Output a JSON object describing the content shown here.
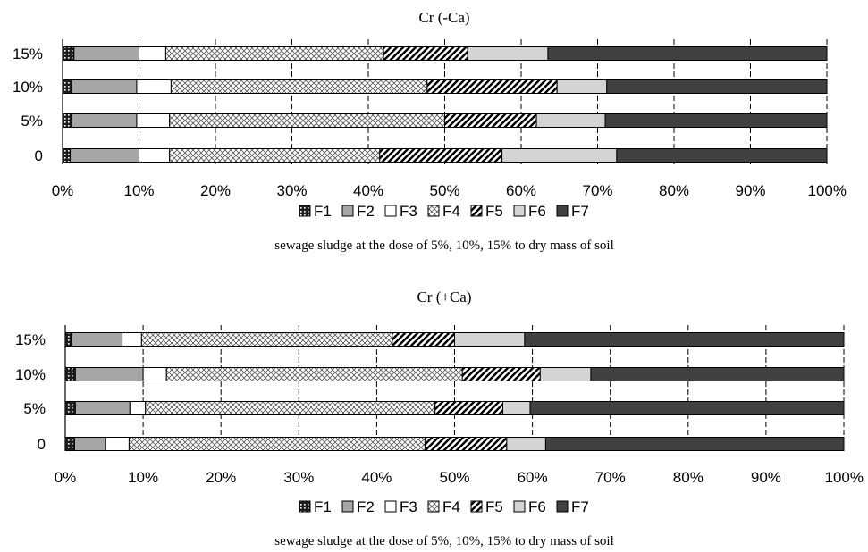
{
  "chart_data": [
    {
      "type": "bar",
      "orientation": "horizontal",
      "stacked": true,
      "title": "Cr (-Ca)",
      "caption": "sewage sludge at the dose of 5%, 10%, 15% to dry mass of soil",
      "categories": [
        "15%",
        "10%",
        "5%",
        "0"
      ],
      "x_ticks": [
        "0%",
        "10%",
        "20%",
        "30%",
        "40%",
        "50%",
        "60%",
        "70%",
        "80%",
        "90%",
        "100%"
      ],
      "xlim": [
        0,
        100
      ],
      "grid": "vertical dashed",
      "legend_position": "bottom",
      "series": [
        {
          "name": "F1",
          "values": [
            1.5,
            1.2,
            1.2,
            1.0
          ]
        },
        {
          "name": "F2",
          "values": [
            8.5,
            8.5,
            8.5,
            9.0
          ]
        },
        {
          "name": "F3",
          "values": [
            3.5,
            4.5,
            4.3,
            4.0
          ]
        },
        {
          "name": "F4",
          "values": [
            28.5,
            33.5,
            36.0,
            27.5
          ]
        },
        {
          "name": "F5",
          "values": [
            11.0,
            17.0,
            12.0,
            16.0
          ]
        },
        {
          "name": "F6",
          "values": [
            10.5,
            6.5,
            9.0,
            15.0
          ]
        },
        {
          "name": "F7",
          "values": [
            36.5,
            28.8,
            29.0,
            27.5
          ]
        }
      ]
    },
    {
      "type": "bar",
      "orientation": "horizontal",
      "stacked": true,
      "title": "Cr (+Ca)",
      "caption": "sewage sludge at the dose of 5%, 10%, 15% to dry mass of soil",
      "categories": [
        "15%",
        "10%",
        "5%",
        "0"
      ],
      "x_ticks": [
        "0%",
        "10%",
        "20%",
        "30%",
        "40%",
        "50%",
        "60%",
        "70%",
        "80%",
        "90%",
        "100%"
      ],
      "xlim": [
        0,
        100
      ],
      "grid": "vertical dashed",
      "legend_position": "bottom",
      "series": [
        {
          "name": "F1",
          "values": [
            0.8,
            1.3,
            1.3,
            1.2
          ]
        },
        {
          "name": "F2",
          "values": [
            6.5,
            8.7,
            7.0,
            4.0
          ]
        },
        {
          "name": "F3",
          "values": [
            2.5,
            3.0,
            2.0,
            3.0
          ]
        },
        {
          "name": "F4",
          "values": [
            32.2,
            38.0,
            37.2,
            38.0
          ]
        },
        {
          "name": "F5",
          "values": [
            8.0,
            10.0,
            8.7,
            10.5
          ]
        },
        {
          "name": "F6",
          "values": [
            9.0,
            6.5,
            3.5,
            5.0
          ]
        },
        {
          "name": "F7",
          "values": [
            41.0,
            32.5,
            40.3,
            38.3
          ]
        }
      ]
    }
  ],
  "colors": {
    "F1": "#1e1e1e",
    "F2": "#a6a6a6",
    "F3": "#ffffff",
    "F4": "#ffffff",
    "F5": "#ffffff",
    "F6": "#d4d4d4",
    "F7": "#404040"
  }
}
